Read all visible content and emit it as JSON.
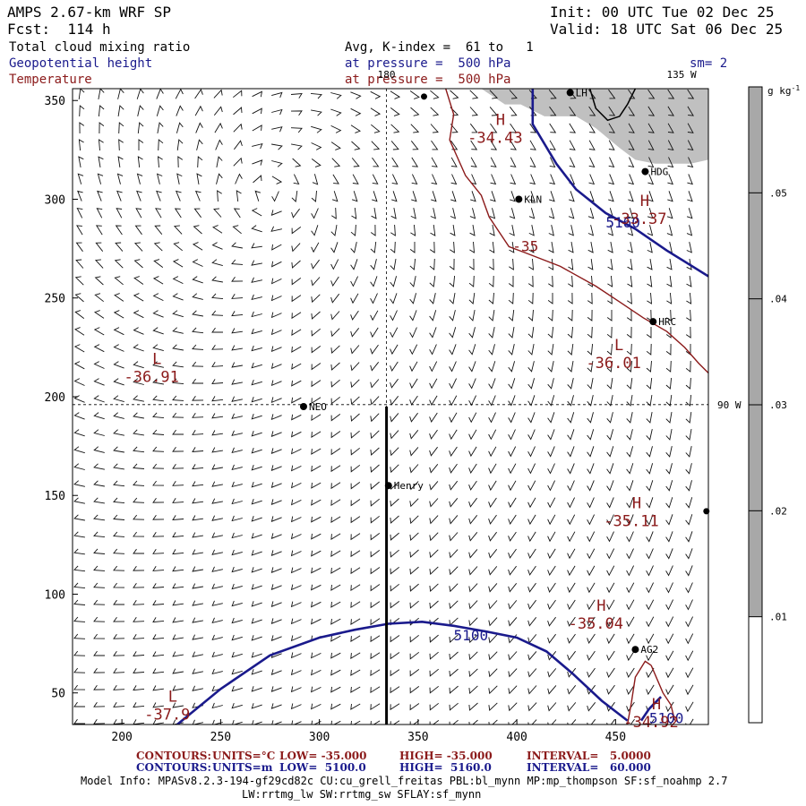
{
  "header": {
    "model": "AMPS 2.67-km WRF SP",
    "init": "Init: 00 UTC Tue 02 Dec 25",
    "fcst": "Fcst:  114 h",
    "valid": "Valid: 18 UTC Sat 06 Dec 25",
    "field1": "Total cloud mixing ratio",
    "field1_info": "Avg, K-index =  61 to   1",
    "field2": "Geopotential height",
    "field2_info": "at pressure =  500 hPa",
    "field3": "Temperature",
    "field3_info": "at pressure =  500 hPa",
    "smoothing": "sm= 2"
  },
  "colors": {
    "geopotential": "#1a1a8c",
    "temperature": "#8b1a1a",
    "cloud_shade": "#c0c0c0",
    "grid_line": "#000000"
  },
  "chart_data": {
    "type": "contour-map",
    "title": "AMPS 2.67-km WRF SP",
    "xlim": [
      175,
      497
    ],
    "ylim": [
      34,
      356
    ],
    "x_ticks": [
      200,
      250,
      300,
      350,
      400,
      450
    ],
    "y_ticks": [
      50,
      100,
      150,
      200,
      250,
      300,
      350
    ],
    "meridians": [
      {
        "label": "180",
        "x": 334
      },
      {
        "label": "135 W",
        "x": 485
      },
      {
        "label": "90 W",
        "y": 196
      }
    ],
    "colorbar": {
      "units": "g kg",
      "units_sup": "-1",
      "min": 0,
      "max": 0.06,
      "labels": [
        ".01",
        ".02",
        ".03",
        ".04",
        ".05"
      ],
      "label_values": [
        0.01,
        0.02,
        0.03,
        0.04,
        0.05
      ],
      "shade_above": 0.01
    },
    "stations": [
      {
        "name": "KLN",
        "x": 401,
        "y": 300
      },
      {
        "name": "HDG",
        "x": 465,
        "y": 314
      },
      {
        "name": "HRC",
        "x": 469,
        "y": 238
      },
      {
        "name": "NEO",
        "x": 292,
        "y": 195
      },
      {
        "name": "Henry",
        "x": 335,
        "y": 155
      },
      {
        "name": "AG2",
        "x": 460,
        "y": 72
      },
      {
        "name": "LH",
        "x": 427,
        "y": 354
      }
    ],
    "extra_points": [
      {
        "x": 496,
        "y": 142
      },
      {
        "x": 353,
        "y": 352
      }
    ],
    "section_line": {
      "x": 334,
      "y0": 34,
      "y1": 195
    },
    "geopotential_contours": [
      {
        "label": "5160",
        "points": [
          [
            408,
            356
          ],
          [
            408,
            338
          ],
          [
            420,
            318
          ],
          [
            430,
            305
          ],
          [
            445,
            293
          ],
          [
            460,
            285
          ],
          [
            476,
            274
          ],
          [
            497,
            261
          ]
        ]
      },
      {
        "label": "5100",
        "points": [
          [
            228,
            34
          ],
          [
            250,
            52
          ],
          [
            275,
            69
          ],
          [
            300,
            78
          ],
          [
            318,
            82
          ],
          [
            335,
            85
          ],
          [
            352,
            86
          ],
          [
            368,
            84
          ],
          [
            385,
            81
          ],
          [
            400,
            78
          ],
          [
            415,
            71
          ],
          [
            428,
            60
          ],
          [
            443,
            46
          ],
          [
            456,
            36
          ]
        ]
      },
      {
        "label": "5100",
        "points": [
          [
            463,
            36
          ],
          [
            467,
            42
          ],
          [
            473,
            48
          ]
        ]
      }
    ],
    "temperature_contours": [
      {
        "label": "-35",
        "points": [
          [
            364,
            356
          ],
          [
            368,
            343
          ],
          [
            366,
            330
          ],
          [
            374,
            312
          ],
          [
            382,
            302
          ],
          [
            386,
            291
          ],
          [
            396,
            276
          ],
          [
            404,
            273
          ],
          [
            422,
            266
          ],
          [
            440,
            256
          ],
          [
            452,
            248
          ],
          [
            464,
            240
          ],
          [
            476,
            233
          ],
          [
            485,
            225
          ],
          [
            492,
            217
          ],
          [
            497,
            212
          ]
        ]
      },
      {
        "label": "",
        "points": [
          [
            456,
            34
          ],
          [
            458,
            45
          ],
          [
            460,
            58
          ],
          [
            465,
            66
          ],
          [
            468,
            64
          ]
        ]
      },
      {
        "label": "",
        "points": [
          [
            468,
            64
          ],
          [
            471,
            57
          ],
          [
            474,
            50
          ],
          [
            478,
            44
          ],
          [
            480,
            36
          ]
        ]
      }
    ],
    "highs_lows": [
      {
        "type": "H",
        "value": "-34.43",
        "x": 389,
        "y": 334
      },
      {
        "type": "H",
        "value": "-33.37",
        "x": 462,
        "y": 293
      },
      {
        "type": "L",
        "value": "-36.91",
        "x": 215,
        "y": 213
      },
      {
        "type": "L",
        "value": "-36.01",
        "x": 449,
        "y": 220
      },
      {
        "type": "H",
        "value": "-35.11",
        "x": 458,
        "y": 140
      },
      {
        "type": "H",
        "value": "-35.04",
        "x": 440,
        "y": 88
      },
      {
        "type": "L",
        "value": "-37.9",
        "x": 223,
        "y": 42
      },
      {
        "type": "H",
        "value": "-34.92",
        "x": 468,
        "y": 38
      }
    ],
    "cloud_regions": [
      [
        [
          382,
          356
        ],
        [
          393,
          356
        ],
        [
          400,
          356
        ],
        [
          497,
          356
        ],
        [
          497,
          320
        ],
        [
          488,
          318
        ],
        [
          470,
          318
        ],
        [
          460,
          320
        ],
        [
          452,
          326
        ],
        [
          440,
          336
        ],
        [
          430,
          342
        ],
        [
          414,
          342
        ],
        [
          402,
          348
        ],
        [
          394,
          348
        ],
        [
          382,
          356
        ]
      ]
    ],
    "coast_line": [
      [
        437,
        356
      ],
      [
        440,
        346
      ],
      [
        446,
        340
      ],
      [
        452,
        342
      ],
      [
        456,
        348
      ],
      [
        460,
        356
      ]
    ]
  },
  "footer": {
    "contours_t_label": "CONTOURS:",
    "contours_t_units": "UNITS=°C",
    "contours_t_low": "LOW= -35.000",
    "contours_t_high": "HIGH= -35.000",
    "contours_t_interval": "INTERVAL=   5.0000",
    "contours_z_label": "CONTOURS:",
    "contours_z_units": "UNITS=m",
    "contours_z_low": "LOW=  5100.0",
    "contours_z_high": "HIGH=  5160.0",
    "contours_z_interval": "INTERVAL=   60.000",
    "model_info": "Model Info: MPASv8.2.3-194-gf29cd82c CU:cu_grell_freitas PBL:bl_mynn MP:mp_thompson SF:sf_noahmp 2.7",
    "model_info2": "LW:rrtmg_lw SW:rrtmg_sw SFLAY:sf_mynn"
  }
}
